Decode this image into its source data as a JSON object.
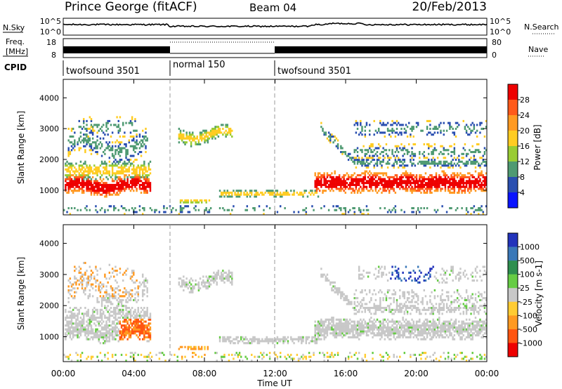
{
  "header": {
    "station": "Prince George (fitACF)",
    "beam": "Beam 04",
    "date": "20/Feb/2013"
  },
  "panels": {
    "nsky": {
      "label": "N.Sky",
      "ticks_left": [
        "10^5",
        "10^0"
      ],
      "ticks_right": [
        "10^5",
        "10^0"
      ],
      "right_label": "N.Search"
    },
    "freq": {
      "label_line1": "Freq.",
      "label_line2": "[MHz]",
      "ticks_left": [
        "18",
        "8"
      ],
      "ticks_right": [
        "80",
        "0"
      ],
      "right_label": "Nave"
    },
    "cpid": {
      "label": "CPID",
      "segments": [
        {
          "text": "twofsound 3501",
          "start_hour": 0,
          "end_hour": 6
        },
        {
          "text": "normal 150",
          "start_hour": 6,
          "end_hour": 12
        },
        {
          "text": "twofsound 3501",
          "start_hour": 12,
          "end_hour": 24
        }
      ]
    }
  },
  "chart_data": [
    {
      "type": "heatmap",
      "name": "power",
      "ylabel": "Slant Range [km]",
      "yticks": [
        1000,
        2000,
        3000,
        4000
      ],
      "ylim": [
        200,
        4600
      ],
      "xlim": [
        0,
        24
      ],
      "colorbar": {
        "label": "Power [dB]",
        "ticks": [
          "28",
          "24",
          "20",
          "16",
          "12",
          "8",
          "4"
        ],
        "colors": [
          "#ee0000",
          "#ff5a1a",
          "#ff9a22",
          "#ffcc22",
          "#99cc33",
          "#4f9a72",
          "#2a4fb0",
          "#0a14ff"
        ]
      }
    },
    {
      "type": "heatmap",
      "name": "velocity",
      "ylabel": "Slant Range [km]",
      "yticks": [
        1000,
        2000,
        3000,
        4000
      ],
      "ylim": [
        200,
        4600
      ],
      "xlim": [
        0,
        24
      ],
      "colorbar": {
        "label": "Velocity [m s-1]",
        "ticks": [
          "1000",
          "500",
          "100",
          "25",
          "-25",
          "-100",
          "-500",
          "-1000"
        ],
        "colors": [
          "#2233bb",
          "#3a78b8",
          "#2e8f4f",
          "#66cc44",
          "#c8c8c8",
          "#ffcc33",
          "#ff9a22",
          "#ff5511",
          "#ee0000"
        ]
      }
    }
  ],
  "xaxis": {
    "label": "Time UT",
    "tick_labels": [
      "00:00",
      "04:00",
      "08:00",
      "12:00",
      "16:00",
      "20:00",
      "00:00"
    ],
    "tick_hours": [
      0,
      4,
      8,
      12,
      16,
      20,
      24
    ]
  }
}
